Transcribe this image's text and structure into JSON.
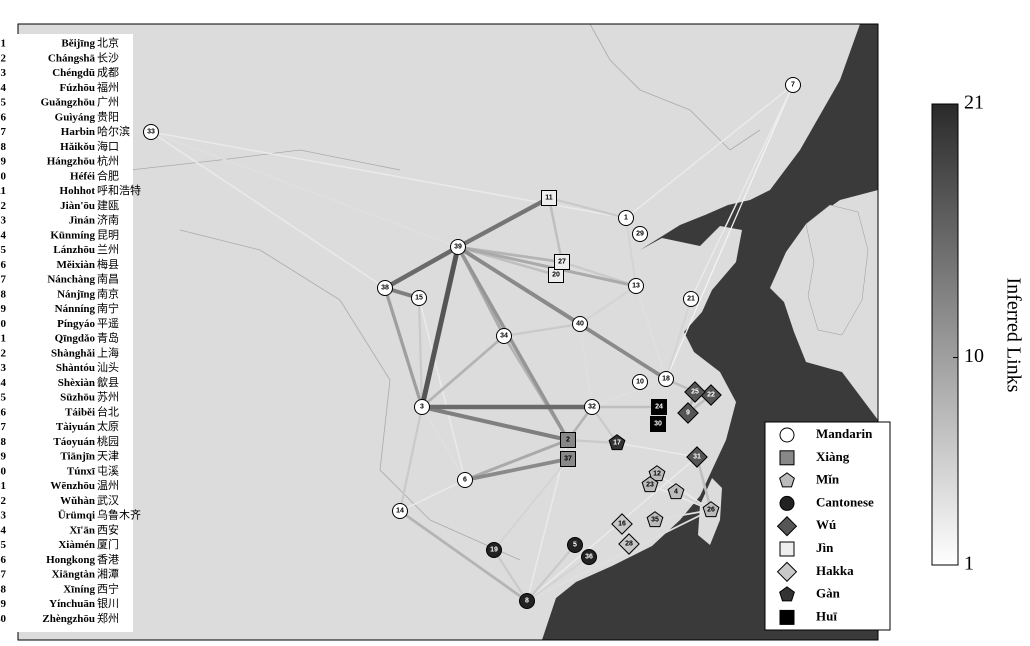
{
  "locations": [
    {
      "id": "1",
      "name": "Běijīng",
      "chinese": "北京",
      "dialect": "Mandarin"
    },
    {
      "id": "2",
      "name": "Chángshā",
      "chinese": "长沙",
      "dialect": "Xiàng"
    },
    {
      "id": "3",
      "name": "Chéngdū",
      "chinese": "成都",
      "dialect": "Mandarin"
    },
    {
      "id": "4",
      "name": "Fúzhōu",
      "chinese": "福州",
      "dialect": "Mǐn"
    },
    {
      "id": "5",
      "name": "Guǎngzhōu",
      "chinese": "广州",
      "dialect": "Cantonese"
    },
    {
      "id": "6",
      "name": "Guìyáng",
      "chinese": "贵阳",
      "dialect": "Mandarin"
    },
    {
      "id": "7",
      "name": "Harbin",
      "chinese": "哈尔滨",
      "dialect": "Mandarin"
    },
    {
      "id": "8",
      "name": "Hǎikǒu",
      "chinese": "海口",
      "dialect": "Cantonese"
    },
    {
      "id": "9",
      "name": "Hángzhōu",
      "chinese": "杭州",
      "dialect": "Wú"
    },
    {
      "id": "10",
      "name": "Héféi",
      "chinese": "合肥",
      "dialect": "Mandarin"
    },
    {
      "id": "11",
      "name": "Hohhot",
      "chinese": "呼和浩特",
      "dialect": "Jìn"
    },
    {
      "id": "12",
      "name": "Jiàn'ōu",
      "chinese": "建瓯",
      "dialect": "Mǐn"
    },
    {
      "id": "13",
      "name": "Jìnán",
      "chinese": "济南",
      "dialect": "Mandarin"
    },
    {
      "id": "14",
      "name": "Kūnmíng",
      "chinese": "昆明",
      "dialect": "Mandarin"
    },
    {
      "id": "15",
      "name": "Lánzhōu",
      "chinese": "兰州",
      "dialect": "Mandarin"
    },
    {
      "id": "16",
      "name": "Měixiàn",
      "chinese": "梅县",
      "dialect": "Hakka"
    },
    {
      "id": "17",
      "name": "Nánchàng",
      "chinese": "南昌",
      "dialect": "Gàn"
    },
    {
      "id": "18",
      "name": "Nánjīng",
      "chinese": "南京",
      "dialect": "Mandarin"
    },
    {
      "id": "19",
      "name": "Nánníng",
      "chinese": "南宁",
      "dialect": "Cantonese"
    },
    {
      "id": "20",
      "name": "Píngyáo",
      "chinese": "平遥",
      "dialect": "Jìn"
    },
    {
      "id": "21",
      "name": "Qīngdǎo",
      "chinese": "青岛",
      "dialect": "Mandarin"
    },
    {
      "id": "22",
      "name": "Shànghǎi",
      "chinese": "上海",
      "dialect": "Wú"
    },
    {
      "id": "23",
      "name": "Shàntóu",
      "chinese": "汕头",
      "dialect": "Mǐn"
    },
    {
      "id": "24",
      "name": "Shèxiàn",
      "chinese": "歙县",
      "dialect": "Huī"
    },
    {
      "id": "25",
      "name": "Sūzhōu",
      "chinese": "苏州",
      "dialect": "Wú"
    },
    {
      "id": "26",
      "name": "Táiběi",
      "chinese": "台北",
      "dialect": "Mǐn"
    },
    {
      "id": "27",
      "name": "Tàiyuán",
      "chinese": "太原",
      "dialect": "Jìn"
    },
    {
      "id": "28",
      "name": "Táoyuán",
      "chinese": "桃园",
      "dialect": "Hakka"
    },
    {
      "id": "29",
      "name": "Tiānjīn",
      "chinese": "天津",
      "dialect": "Mandarin"
    },
    {
      "id": "30",
      "name": "Túnxī",
      "chinese": "屯溪",
      "dialect": "Huī"
    },
    {
      "id": "31",
      "name": "Wēnzhōu",
      "chinese": "温州",
      "dialect": "Wú"
    },
    {
      "id": "32",
      "name": "Wǔhàn",
      "chinese": "武汉",
      "dialect": "Mandarin"
    },
    {
      "id": "33",
      "name": "Ürümqi",
      "chinese": "乌鲁木齐",
      "dialect": "Mandarin"
    },
    {
      "id": "34",
      "name": "Xī'ān",
      "chinese": "西安",
      "dialect": "Mandarin"
    },
    {
      "id": "35",
      "name": "Xiàmén",
      "chinese": "厦门",
      "dialect": "Mǐn"
    },
    {
      "id": "36",
      "name": "Hongkong",
      "chinese": "香港",
      "dialect": "Cantonese"
    },
    {
      "id": "37",
      "name": "Xiāngtàn",
      "chinese": "湘潭",
      "dialect": "Xiàng"
    },
    {
      "id": "38",
      "name": "Xīníng",
      "chinese": "西宁",
      "dialect": "Mandarin"
    },
    {
      "id": "39",
      "name": "Yínchuān",
      "chinese": "银川",
      "dialect": "Mandarin"
    },
    {
      "id": "40",
      "name": "Zhèngzhōu",
      "chinese": "郑州",
      "dialect": "Mandarin"
    }
  ],
  "legend": [
    {
      "name": "Mandarin",
      "shape": "circle",
      "fill": "#ffffff"
    },
    {
      "name": "Xiàng",
      "shape": "square",
      "fill": "#888888"
    },
    {
      "name": "Mǐn",
      "shape": "pentagon",
      "fill": "#bbbbbb"
    },
    {
      "name": "Cantonese",
      "shape": "circle",
      "fill": "#222222"
    },
    {
      "name": "Wú",
      "shape": "diamond",
      "fill": "#555555"
    },
    {
      "name": "Jìn",
      "shape": "square",
      "fill": "#eeeeee"
    },
    {
      "name": "Hakka",
      "shape": "diamond",
      "fill": "#c8c8c8"
    },
    {
      "name": "Gàn",
      "shape": "pentagon",
      "fill": "#333333"
    },
    {
      "name": "Huī",
      "shape": "square",
      "fill": "#000000"
    }
  ],
  "colorbar": {
    "label": "Inferred Links",
    "lim": [
      1,
      21
    ],
    "ticks": [
      1,
      10,
      21
    ],
    "low_color": "#ffffff",
    "high_color": "#2a2a2a"
  },
  "edges": [
    {
      "from": "3",
      "to": "39",
      "weight": 17
    },
    {
      "from": "3",
      "to": "32",
      "weight": 15
    },
    {
      "from": "38",
      "to": "39",
      "weight": 15
    },
    {
      "from": "38",
      "to": "15",
      "weight": 13
    },
    {
      "from": "39",
      "to": "11",
      "weight": 14
    },
    {
      "from": "39",
      "to": "40",
      "weight": 12
    },
    {
      "from": "39",
      "to": "18",
      "weight": 12
    },
    {
      "from": "39",
      "to": "2",
      "weight": 11
    },
    {
      "from": "39",
      "to": "34",
      "weight": 9
    },
    {
      "from": "39",
      "to": "13",
      "weight": 9
    },
    {
      "from": "39",
      "to": "27",
      "weight": 8
    },
    {
      "from": "39",
      "to": "20",
      "weight": 7
    },
    {
      "from": "6",
      "to": "37",
      "weight": 12
    },
    {
      "from": "6",
      "to": "2",
      "weight": 9
    },
    {
      "from": "3",
      "to": "2",
      "weight": 13
    },
    {
      "from": "3",
      "to": "38",
      "weight": 10
    },
    {
      "from": "3",
      "to": "34",
      "weight": 8
    },
    {
      "from": "3",
      "to": "14",
      "weight": 6
    },
    {
      "from": "3",
      "to": "15",
      "weight": 6
    },
    {
      "from": "40",
      "to": "18",
      "weight": 10
    },
    {
      "from": "34",
      "to": "40",
      "weight": 6
    },
    {
      "from": "34",
      "to": "2",
      "weight": 8
    },
    {
      "from": "32",
      "to": "24",
      "weight": 7
    },
    {
      "from": "32",
      "to": "17",
      "weight": 6
    },
    {
      "from": "2",
      "to": "17",
      "weight": 6
    },
    {
      "from": "2",
      "to": "32",
      "weight": 8
    },
    {
      "from": "11",
      "to": "1",
      "weight": 6
    },
    {
      "from": "11",
      "to": "27",
      "weight": 7
    },
    {
      "from": "27",
      "to": "13",
      "weight": 6
    },
    {
      "from": "1",
      "to": "13",
      "weight": 5
    },
    {
      "from": "1",
      "to": "29",
      "weight": 4
    },
    {
      "from": "21",
      "to": "18",
      "weight": 5
    },
    {
      "from": "18",
      "to": "25",
      "weight": 7
    },
    {
      "from": "25",
      "to": "22",
      "weight": 10
    },
    {
      "from": "9",
      "to": "25",
      "weight": 8
    },
    {
      "from": "9",
      "to": "22",
      "weight": 7
    },
    {
      "from": "26",
      "to": "31",
      "weight": 7
    },
    {
      "from": "26",
      "to": "8",
      "weight": 4
    },
    {
      "from": "26",
      "to": "4",
      "weight": 5
    },
    {
      "from": "14",
      "to": "8",
      "weight": 8
    },
    {
      "from": "19",
      "to": "8",
      "weight": 6
    },
    {
      "from": "5",
      "to": "8",
      "weight": 6
    },
    {
      "from": "36",
      "to": "8",
      "weight": 5
    },
    {
      "from": "37",
      "to": "19",
      "weight": 5
    },
    {
      "from": "33",
      "to": "39",
      "weight": 4
    },
    {
      "from": "33",
      "to": "1",
      "weight": 3
    },
    {
      "from": "33",
      "to": "38",
      "weight": 3
    },
    {
      "from": "7",
      "to": "1",
      "weight": 3
    },
    {
      "from": "7",
      "to": "21",
      "weight": 3
    },
    {
      "from": "7",
      "to": "18",
      "weight": 2
    },
    {
      "from": "15",
      "to": "6",
      "weight": 3
    },
    {
      "from": "40",
      "to": "13",
      "weight": 5
    },
    {
      "from": "40",
      "to": "32",
      "weight": 4
    },
    {
      "from": "10",
      "to": "18",
      "weight": 4
    },
    {
      "from": "31",
      "to": "8",
      "weight": 3
    },
    {
      "from": "16",
      "to": "28",
      "weight": 4
    },
    {
      "from": "6",
      "to": "14",
      "weight": 3
    },
    {
      "from": "32",
      "to": "18",
      "weight": 4
    },
    {
      "from": "2",
      "to": "8",
      "weight": 3
    },
    {
      "from": "17",
      "to": "31",
      "weight": 3
    },
    {
      "from": "3",
      "to": "6",
      "weight": 4
    },
    {
      "from": "13",
      "to": "18",
      "weight": 4
    },
    {
      "from": "12",
      "to": "26",
      "weight": 3
    },
    {
      "from": "35",
      "to": "26",
      "weight": 4
    },
    {
      "from": "23",
      "to": "26",
      "weight": 3
    }
  ]
}
